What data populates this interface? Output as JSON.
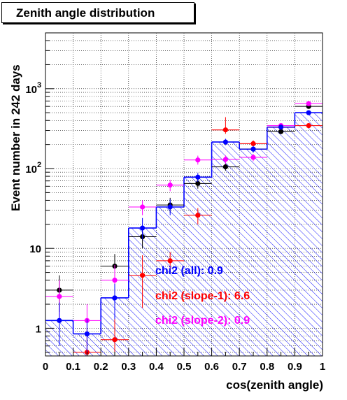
{
  "title": "Zenith angle distribution",
  "chart_data": {
    "type": "histogram",
    "xlabel": "cos(zenith angle)",
    "ylabel": "Event number in 242 days",
    "xlim": [
      0,
      1
    ],
    "ylim": [
      0.45,
      5000
    ],
    "yscale": "log",
    "grid": true,
    "x_ticks": [
      "0",
      "0.1",
      "0.2",
      "0.3",
      "0.4",
      "0.5",
      "0.6",
      "0.7",
      "0.8",
      "0.9",
      "1"
    ],
    "y_ticks": [
      {
        "value": 1,
        "label": "1"
      },
      {
        "value": 10,
        "label": "10"
      },
      {
        "value": 100,
        "label": "10",
        "exp": "2"
      },
      {
        "value": 1000,
        "label": "10",
        "exp": "3"
      }
    ],
    "bins": [
      0.0,
      0.1,
      0.2,
      0.3,
      0.4,
      0.5,
      0.6,
      0.7,
      0.8,
      0.9,
      1.0
    ],
    "expectation": {
      "color": "#0000ff",
      "fill": "hatched",
      "values": [
        1.25,
        0.85,
        2.4,
        18,
        33,
        78,
        215,
        175,
        330,
        500
      ]
    },
    "series": [
      {
        "key": "all",
        "color": "#000000",
        "x": [
          0.05,
          0.15,
          0.25,
          0.35,
          0.45,
          0.55,
          0.65,
          0.75,
          0.85,
          0.95
        ],
        "values": [
          3.0,
          null,
          6.0,
          14,
          35,
          65,
          105,
          175,
          290,
          600
        ],
        "err_low": [
          1.6,
          null,
          3.5,
          10,
          28,
          56,
          94,
          160,
          270,
          570
        ],
        "err_high": [
          4.6,
          null,
          8.5,
          18,
          43,
          75,
          116,
          190,
          310,
          630
        ]
      },
      {
        "key": "slope-2",
        "color": "#ff00ff",
        "x": [
          0.05,
          0.15,
          0.25,
          0.35,
          0.45,
          0.55,
          0.65,
          0.75,
          0.85,
          0.95
        ],
        "values": [
          2.5,
          1.25,
          4.0,
          33,
          62,
          128,
          130,
          138,
          345,
          650
        ],
        "err_low": [
          1.2,
          0.5,
          2.0,
          26,
          52,
          112,
          114,
          124,
          320,
          620
        ],
        "err_high": [
          4.0,
          2.0,
          6.2,
          40,
          72,
          145,
          146,
          152,
          370,
          680
        ]
      },
      {
        "key": "slope-1",
        "color": "#ff0000",
        "x": [
          0.05,
          0.15,
          0.25,
          0.35,
          0.45,
          0.55,
          0.65,
          0.75,
          0.85,
          0.95
        ],
        "values": [
          null,
          0.5,
          0.72,
          4.6,
          7.0,
          26,
          305,
          205,
          330,
          345
        ],
        "err_low": [
          null,
          0.45,
          0.45,
          1.8,
          5.0,
          20,
          272,
          186,
          305,
          320
        ],
        "err_high": [
          null,
          1.0,
          1.6,
          8.2,
          9.0,
          32,
          440,
          225,
          355,
          370
        ]
      },
      {
        "key": "expectation-points",
        "color": "#0000ff",
        "x": [
          0.05,
          0.15,
          0.25,
          0.35,
          0.45,
          0.55,
          0.65,
          0.75,
          0.85,
          0.95
        ],
        "values": [
          1.25,
          0.85,
          2.4,
          18,
          33,
          78,
          215,
          175,
          330,
          500
        ],
        "err_low": [
          0.6,
          0.45,
          1.3,
          13,
          26,
          68,
          196,
          158,
          306,
          470
        ],
        "err_high": [
          2.1,
          1.3,
          3.6,
          24,
          41,
          88,
          236,
          192,
          356,
          530
        ]
      }
    ],
    "annotations": [
      {
        "text": "chi2 (all): 0.9",
        "color": "#0000ff"
      },
      {
        "text": "chi2 (slope-1): 6.6",
        "color": "#ff0000"
      },
      {
        "text": "chi2 (slope-2): 0.9",
        "color": "#ff00ff"
      }
    ]
  }
}
